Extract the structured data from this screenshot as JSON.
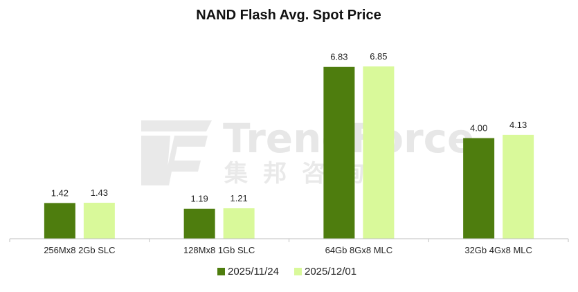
{
  "chart_data": {
    "type": "bar",
    "title": "NAND Flash Avg. Spot Price",
    "categories": [
      "256Mx8 2Gb SLC",
      "128Mx8 1Gb SLC",
      "64Gb 8Gx8 MLC",
      "32Gb 4Gx8 MLC"
    ],
    "series": [
      {
        "name": "2025/11/24",
        "values": [
          1.42,
          1.19,
          6.83,
          4.0
        ],
        "labels": [
          "1.42",
          "1.19",
          "6.83",
          "4.00"
        ],
        "color": "#4e7d0e"
      },
      {
        "name": "2025/12/01",
        "values": [
          1.43,
          1.21,
          6.85,
          4.13
        ],
        "labels": [
          "1.43",
          "1.21",
          "6.85",
          "4.13"
        ],
        "color": "#d9f99a"
      }
    ],
    "ylim": [
      0,
      6.85
    ],
    "legend": "bottom",
    "grid": false
  },
  "watermark": {
    "text": "TrendForce",
    "subtext": "集邦咨询",
    "color": "#e7e7e7"
  }
}
